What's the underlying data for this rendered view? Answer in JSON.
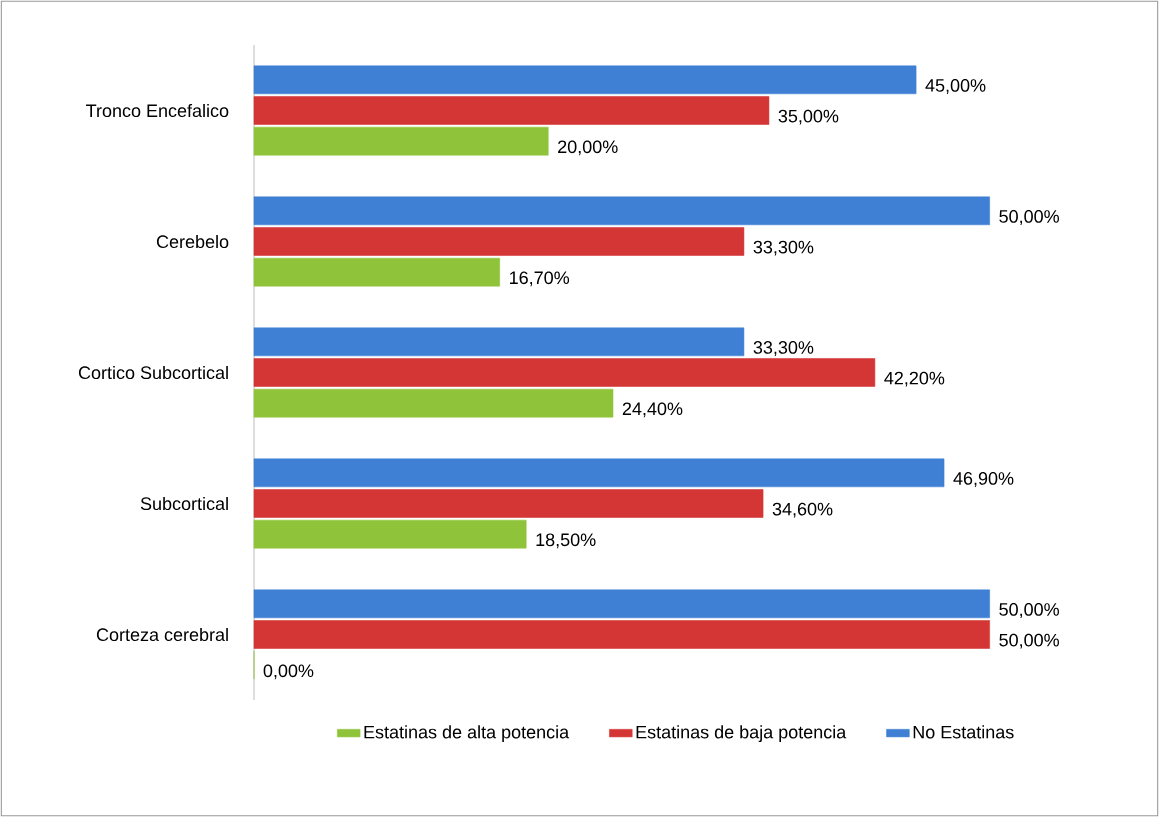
{
  "chart_data": {
    "type": "bar",
    "orientation": "horizontal",
    "legend": "bottom",
    "categories": [
      "Tronco Encefalico",
      "Cerebelo",
      "Cortico Subcortical",
      "Subcortical",
      "Corteza cerebral"
    ],
    "series": [
      {
        "name": "Estatinas de alta potencia",
        "color": "#8fc43a",
        "values": [
          20.0,
          16.7,
          24.4,
          18.5,
          0.0
        ],
        "value_labels": [
          "20,00%",
          "16,70%",
          "24,40%",
          "18,50%",
          "0,00%"
        ]
      },
      {
        "name": "Estatinas de baja potencia",
        "color": "#d43535",
        "values": [
          35.0,
          33.3,
          42.2,
          34.6,
          50.0
        ],
        "value_labels": [
          "35,00%",
          "33,30%",
          "42,20%",
          "34,60%",
          "50,00%"
        ]
      },
      {
        "name": "No Estatinas",
        "color": "#3f7fd4",
        "values": [
          45.0,
          50.0,
          33.3,
          46.9,
          50.0
        ],
        "value_labels": [
          "45,00%",
          "50,00%",
          "33,30%",
          "46,90%",
          "50,00%"
        ]
      }
    ]
  }
}
